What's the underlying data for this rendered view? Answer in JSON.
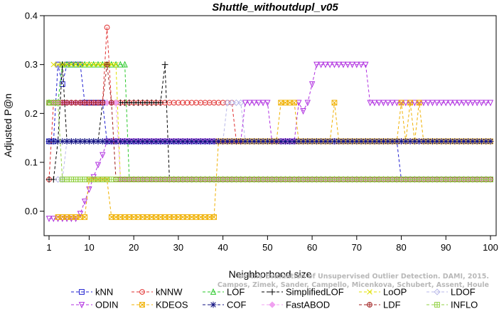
{
  "chart_data": {
    "type": "line",
    "title": "Shuttle_withoutdupl_v05",
    "xlabel": "Neighborhood size",
    "ylabel": "Adjusted P@n",
    "xlim": [
      1,
      100
    ],
    "ylim": [
      -0.05,
      0.4
    ],
    "xticks": [
      1,
      10,
      20,
      30,
      40,
      50,
      60,
      70,
      80,
      90,
      100
    ],
    "xtick_labels": [
      "1",
      "10",
      "20",
      "30",
      "40",
      "50",
      "60",
      "70",
      "80",
      "90",
      "100"
    ],
    "yticks": [
      0.0,
      0.1,
      0.2,
      0.3,
      0.4
    ],
    "ytick_labels": [
      "0.0",
      "0.1",
      "0.2",
      "0.3",
      "0.4"
    ],
    "grid": false,
    "legend_position": "bottom",
    "watermark_lines": [
      "Campos, Zimek, Sander, Campello, Micenkova, Schubert, Assent, Houle",
      "On the Evaluation of Unsupervised Outlier Detection. DAMI, 2015."
    ],
    "series": [
      {
        "name": "kNN",
        "color": "#1f1fd0",
        "marker": "square",
        "segments": [
          [
            1,
            9,
            0.143
          ],
          [
            10,
            14,
            0.222
          ],
          [
            15,
            17,
            0.143
          ],
          [
            18,
            28,
            0.143
          ],
          [
            29,
            79,
            0.143
          ],
          [
            80,
            100,
            0.065
          ]
        ],
        "points": [
          [
            2,
            0.143
          ],
          [
            3,
            0.3
          ],
          [
            4,
            0.26
          ],
          [
            5,
            0.3
          ],
          [
            6,
            0.3
          ],
          [
            7,
            0.3
          ],
          [
            8,
            0.3
          ],
          [
            9,
            0.222
          ],
          [
            14,
            0.143
          ],
          [
            79,
            0.143
          ]
        ]
      },
      {
        "name": "kNNW",
        "color": "#e03030",
        "marker": "circle",
        "segments": [
          [
            1,
            2,
            0.065
          ],
          [
            3,
            13,
            0.222
          ],
          [
            15,
            41,
            0.222
          ],
          [
            42,
            79,
            0.143
          ],
          [
            80,
            100,
            0.143
          ]
        ],
        "points": [
          [
            14,
            0.376
          ],
          [
            2,
            0.222
          ],
          [
            42,
            0.222
          ]
        ]
      },
      {
        "name": "LOF",
        "color": "#28c828",
        "marker": "triangle-up",
        "segments": [
          [
            1,
            2,
            0.222
          ],
          [
            5,
            18,
            0.3
          ],
          [
            19,
            100,
            0.065
          ]
        ],
        "points": [
          [
            3,
            0.222
          ],
          [
            4,
            0.3
          ]
        ]
      },
      {
        "name": "SimplifiedLOF",
        "color": "#000000",
        "marker": "plus",
        "segments": [
          [
            1,
            2,
            0.065
          ],
          [
            3,
            12,
            0.143
          ],
          [
            13,
            26,
            0.222
          ],
          [
            28,
            100,
            0.065
          ]
        ],
        "points": [
          [
            27,
            0.3
          ],
          [
            4,
            0.3
          ],
          [
            14,
            0.222
          ]
        ]
      },
      {
        "name": "LoOP",
        "color": "#e0e000",
        "marker": "x",
        "segments": [
          [
            2,
            16,
            0.3
          ],
          [
            17,
            100,
            0.065
          ]
        ],
        "points": []
      },
      {
        "name": "LDOF",
        "color": "#b8b8e8",
        "marker": "diamond",
        "segments": [
          [
            3,
            4,
            0.065
          ],
          [
            5,
            40,
            0.143
          ],
          [
            41,
            44,
            0.222
          ],
          [
            45,
            100,
            0.143
          ]
        ],
        "points": []
      },
      {
        "name": "ODIN",
        "color": "#b030e0",
        "marker": "triangle-down",
        "segments": [
          [
            1,
            7,
            -0.015
          ],
          [
            8,
            12,
            0.08
          ],
          [
            13,
            44,
            0.143
          ],
          [
            45,
            50,
            0.222
          ],
          [
            51,
            56,
            0.143
          ],
          [
            57,
            59,
            0.222
          ],
          [
            61,
            72,
            0.3
          ],
          [
            73,
            100,
            0.222
          ]
        ],
        "points": [
          [
            8,
            -0.005
          ],
          [
            9,
            0.02
          ],
          [
            10,
            0.045
          ],
          [
            11,
            0.07
          ],
          [
            12,
            0.095
          ],
          [
            13,
            0.115
          ],
          [
            60,
            0.26
          ],
          [
            58,
            0.205
          ],
          [
            59,
            0.222
          ]
        ]
      },
      {
        "name": "KDEOS",
        "color": "#f0b000",
        "marker": "square-x",
        "segments": [
          [
            3,
            9,
            -0.012
          ],
          [
            10,
            14,
            0.065
          ],
          [
            15,
            38,
            -0.012
          ],
          [
            39,
            52,
            0.143
          ],
          [
            53,
            56,
            0.222
          ],
          [
            57,
            64,
            0.143
          ],
          [
            66,
            100,
            0.143
          ]
        ],
        "points": [
          [
            65,
            0.222
          ],
          [
            80,
            0.222
          ],
          [
            82,
            0.222
          ],
          [
            84,
            0.222
          ]
        ]
      },
      {
        "name": "COF",
        "color": "#101080",
        "marker": "star",
        "segments": [
          [
            1,
            3,
            0.143
          ],
          [
            4,
            100,
            0.143
          ]
        ],
        "points": []
      },
      {
        "name": "FastABOD",
        "color": "#f0a0f0",
        "marker": "diamond-filled",
        "segments": [
          [
            2,
            16,
            0.222
          ],
          [
            17,
            100,
            0.065
          ]
        ],
        "points": []
      },
      {
        "name": "LDF",
        "color": "#a02020",
        "marker": "circle-plus",
        "segments": [
          [
            1,
            13,
            0.222
          ],
          [
            16,
            27,
            0.065
          ],
          [
            28,
            100,
            0.065
          ]
        ],
        "points": [
          [
            14,
            0.3
          ],
          [
            15,
            0.222
          ]
        ]
      },
      {
        "name": "INFLO",
        "color": "#90d040",
        "marker": "square-plus",
        "segments": [
          [
            1,
            3,
            0.222
          ],
          [
            4,
            100,
            0.065
          ]
        ],
        "points": []
      }
    ]
  }
}
